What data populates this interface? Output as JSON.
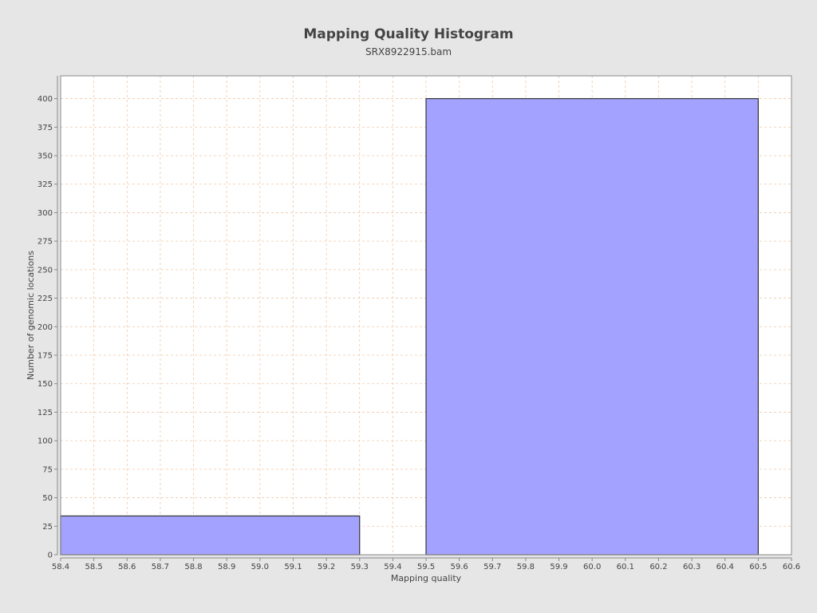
{
  "chart_data": {
    "type": "bar",
    "title": "Mapping Quality Histogram",
    "subtitle": "SRX8922915.bam",
    "xlabel": "Mapping quality",
    "ylabel": "Number of genomic locations",
    "xlim": [
      58.4,
      60.6
    ],
    "ylim": [
      0,
      420
    ],
    "x_ticks": [
      "58.4",
      "58.5",
      "58.6",
      "58.7",
      "58.8",
      "58.9",
      "59.0",
      "59.1",
      "59.2",
      "59.3",
      "59.4",
      "59.5",
      "59.6",
      "59.7",
      "59.8",
      "59.9",
      "60.0",
      "60.1",
      "60.2",
      "60.3",
      "60.4",
      "60.5",
      "60.6"
    ],
    "y_ticks": [
      "0",
      "25",
      "50",
      "75",
      "100",
      "125",
      "150",
      "175",
      "200",
      "225",
      "250",
      "275",
      "300",
      "325",
      "350",
      "375",
      "400"
    ],
    "grid": true,
    "bins": [
      {
        "start": 58.4,
        "end": 59.3,
        "value": 34
      },
      {
        "start": 59.5,
        "end": 60.5,
        "value": 400
      }
    ],
    "colors": {
      "bar_fill": "#a3a3ff",
      "bar_stroke": "#333333",
      "grid": "#f0c8a8",
      "plot_bg": "#ffffff",
      "page_bg": "#e6e6e6"
    }
  }
}
